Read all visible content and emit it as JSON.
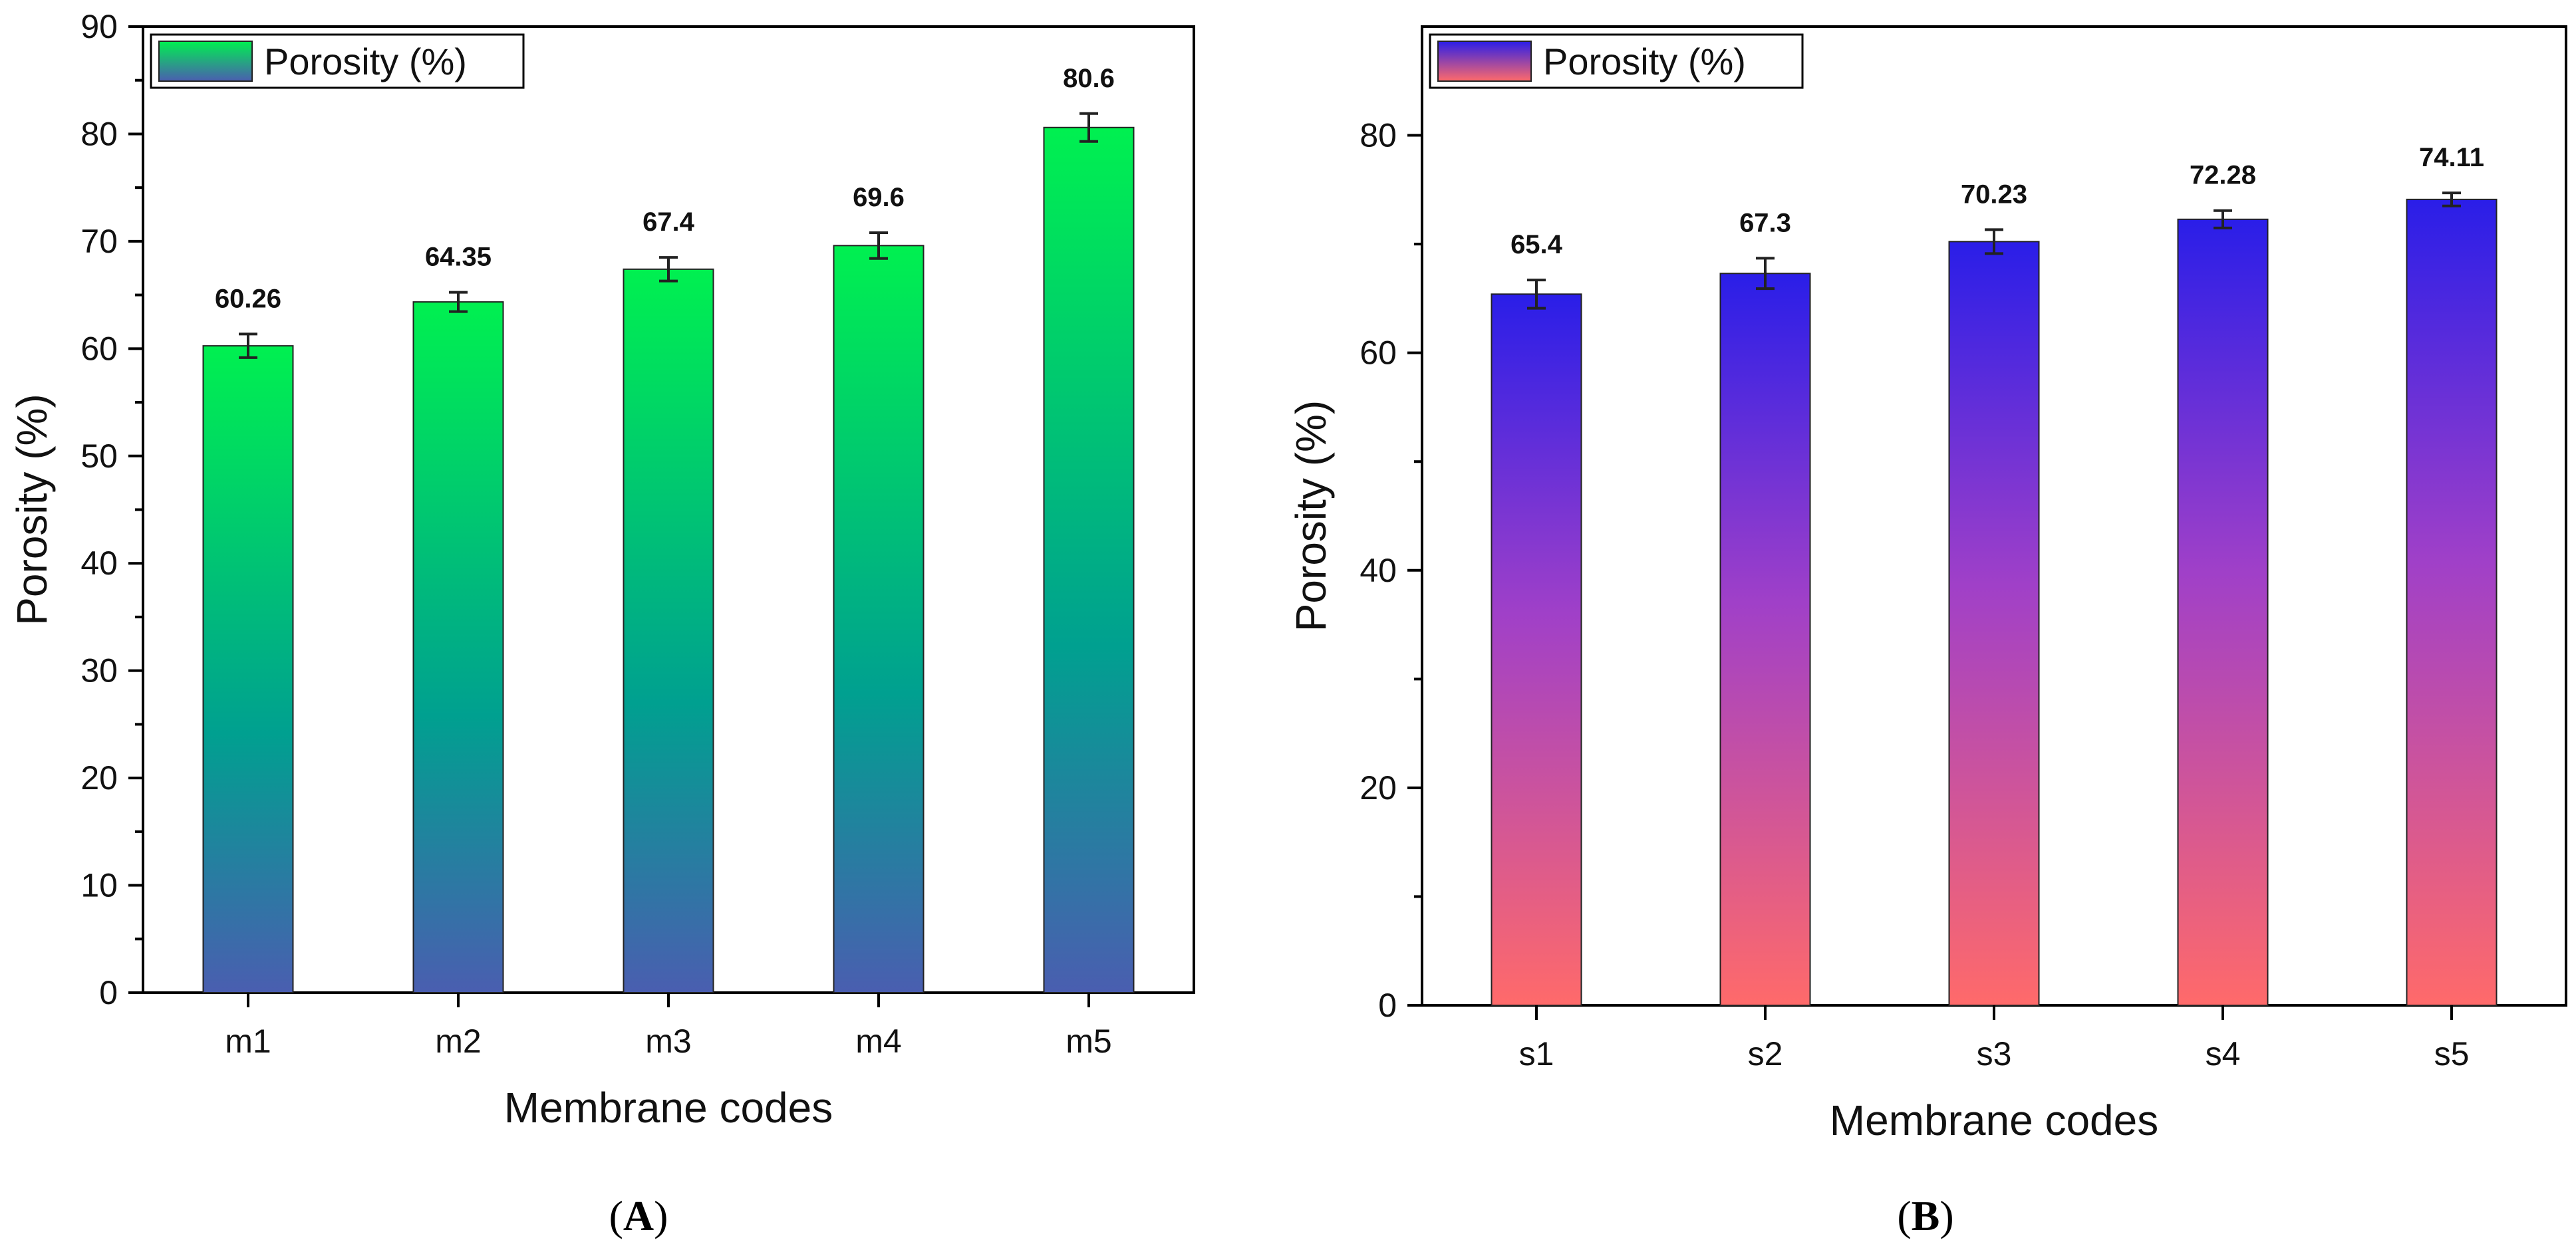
{
  "chart_data": [
    {
      "type": "bar",
      "panel_label": "A",
      "legend": "Porosity (%)",
      "categories": [
        "m1",
        "m2",
        "m3",
        "m4",
        "m5"
      ],
      "values": [
        60.26,
        64.35,
        67.4,
        69.6,
        80.6
      ],
      "value_labels": [
        "60.26",
        "64.35",
        "67.4",
        "69.6",
        "80.6"
      ],
      "errors": [
        1.1,
        0.9,
        1.1,
        1.2,
        1.3
      ],
      "xlabel": "Membrane codes",
      "ylabel": "Porosity (%)",
      "ylim": [
        0,
        90
      ],
      "yticks": [
        0,
        10,
        20,
        30,
        40,
        50,
        60,
        70,
        80,
        90
      ],
      "colors": {
        "top": "#00f050",
        "middle": "#00a090",
        "bottom": "#4a5eb0"
      }
    },
    {
      "type": "bar",
      "panel_label": "B",
      "legend": "Porosity (%)",
      "categories": [
        "s1",
        "s2",
        "s3",
        "s4",
        "s5"
      ],
      "values": [
        65.4,
        67.3,
        70.23,
        72.28,
        74.11
      ],
      "value_labels": [
        "65.4",
        "67.3",
        "70.23",
        "72.28",
        "74.11"
      ],
      "errors": [
        1.3,
        1.4,
        1.1,
        0.8,
        0.6
      ],
      "xlabel": "Membrane codes",
      "ylabel": "Porosity (%)",
      "ylim": [
        0,
        90
      ],
      "yticks": [
        0,
        20,
        40,
        60,
        80
      ],
      "colors": {
        "top": "#2a1ee8",
        "middle": "#a040c8",
        "bottom": "#ff6a6a"
      }
    }
  ]
}
